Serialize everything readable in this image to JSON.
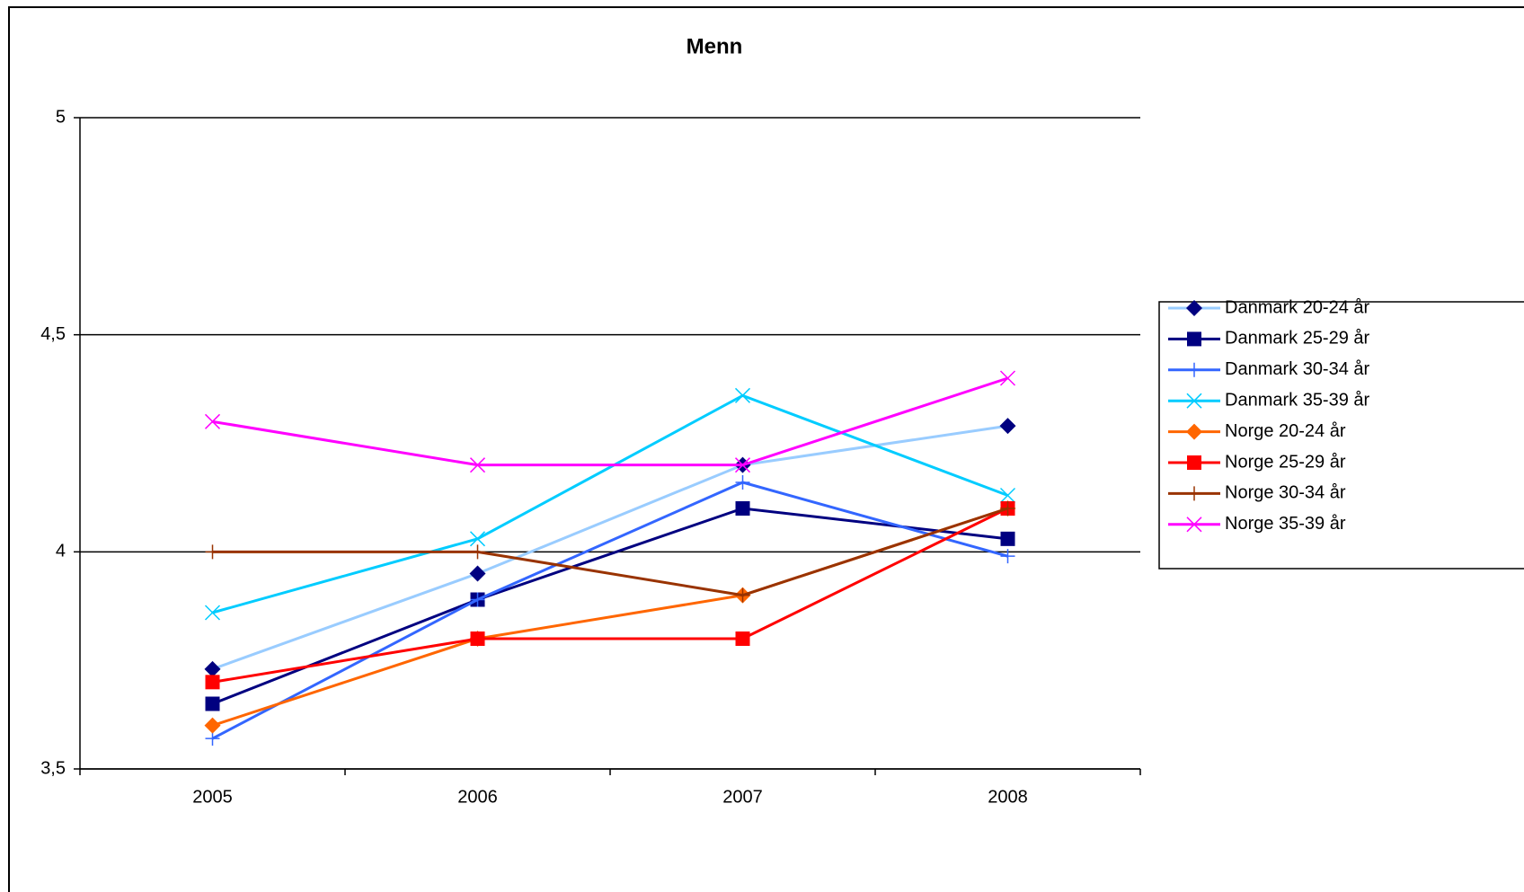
{
  "chart_data": {
    "type": "line",
    "title": "Menn",
    "categories": [
      "2005",
      "2006",
      "2007",
      "2008"
    ],
    "ylim": [
      3.5,
      5
    ],
    "yticks": [
      {
        "value": 3.5,
        "label": "3,5"
      },
      4,
      {
        "value": 4.5,
        "label": "4,5"
      },
      5
    ],
    "grid": true,
    "legend": "right",
    "series": [
      {
        "name": "Danmark 20-24 år",
        "color": "#99ccff",
        "marker": "diamond",
        "marker_color": "#000080",
        "values": [
          3.73,
          3.95,
          4.2,
          4.29
        ]
      },
      {
        "name": "Danmark 25-29 år",
        "color": "#000080",
        "marker": "square",
        "marker_color": "#000080",
        "values": [
          3.65,
          3.89,
          4.1,
          4.03
        ]
      },
      {
        "name": "Danmark 30-34 år",
        "color": "#3366ff",
        "marker": "plus",
        "marker_color": "#3366ff",
        "values": [
          3.57,
          3.89,
          4.16,
          3.99
        ]
      },
      {
        "name": "Danmark 35-39 år",
        "color": "#00ccff",
        "marker": "x",
        "marker_color": "#00ccff",
        "values": [
          3.86,
          4.03,
          4.36,
          4.13
        ]
      },
      {
        "name": "Norge 20-24 år",
        "color": "#ff6600",
        "marker": "diamond",
        "marker_color": "#ff6600",
        "values": [
          3.6,
          3.8,
          3.9,
          4.1
        ]
      },
      {
        "name": "Norge 25-29 år",
        "color": "#ff0000",
        "marker": "square",
        "marker_color": "#ff0000",
        "values": [
          3.7,
          3.8,
          3.8,
          4.1
        ]
      },
      {
        "name": "Norge 30-34 år",
        "color": "#993300",
        "marker": "plus",
        "marker_color": "#993300",
        "values": [
          4,
          4,
          3.9,
          4.1
        ]
      },
      {
        "name": "Norge 35-39 år",
        "color": "#ff00ff",
        "marker": "x",
        "marker_color": "#ff00ff",
        "values": [
          4.3,
          4.2,
          4.2,
          4.4
        ]
      }
    ]
  }
}
